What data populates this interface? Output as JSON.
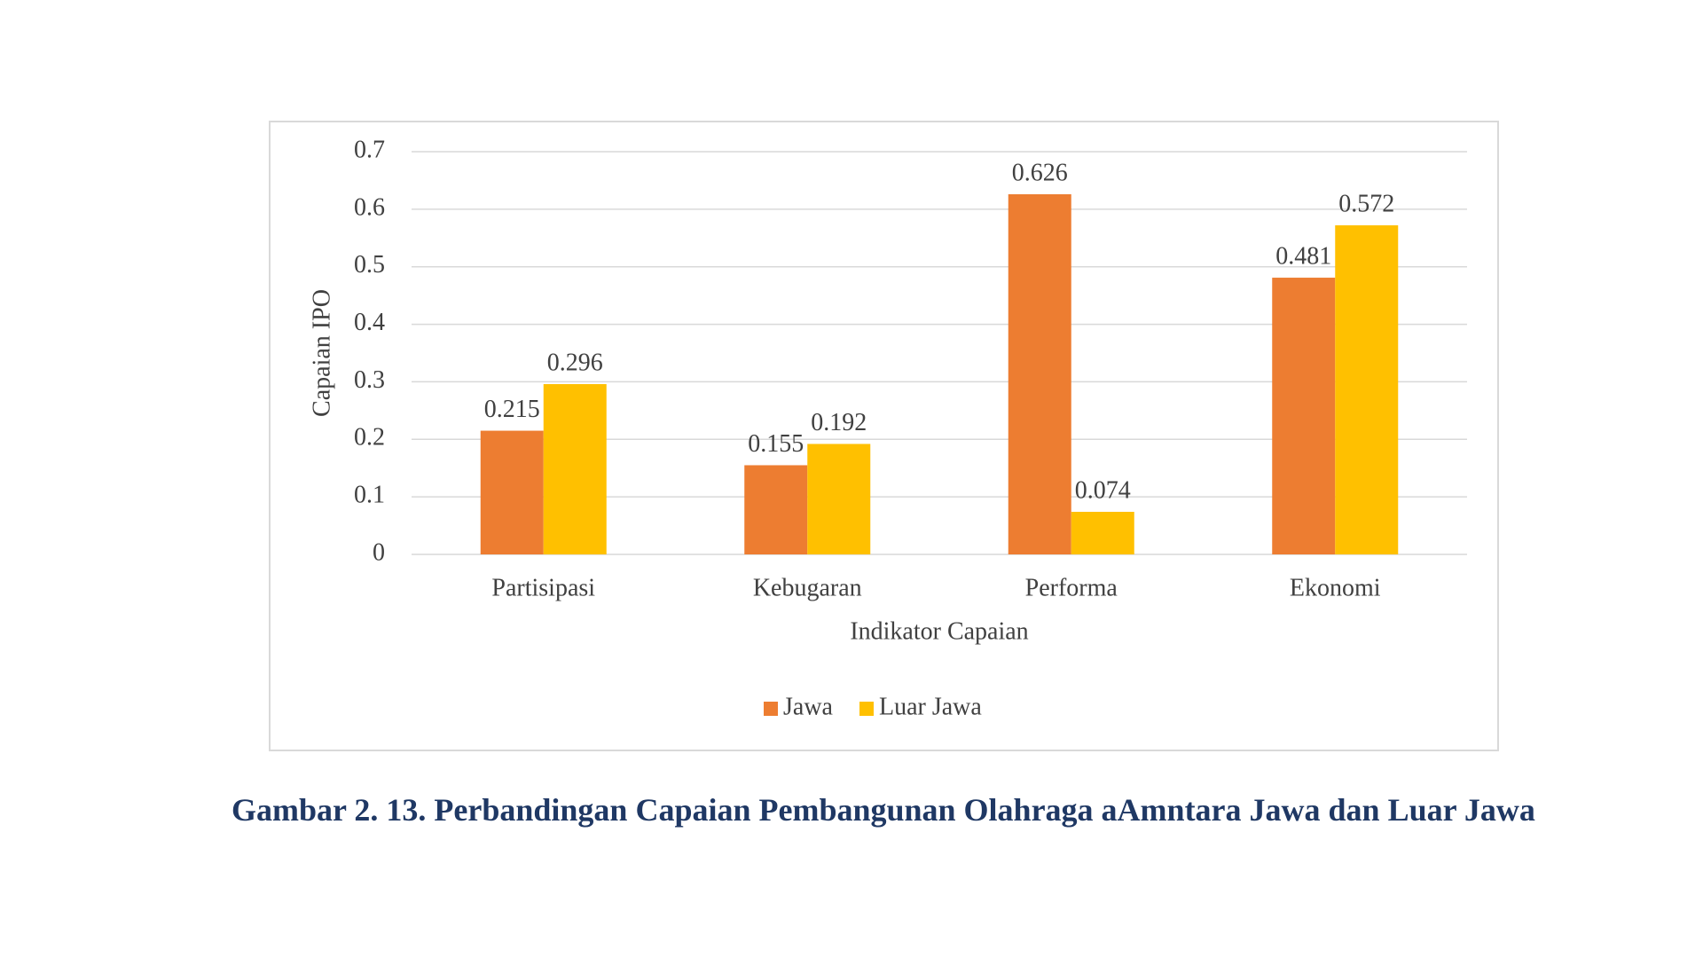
{
  "chart_data": {
    "type": "bar",
    "categories": [
      "Partisipasi",
      "Kebugaran",
      "Performa",
      "Ekonomi"
    ],
    "series": [
      {
        "name": "Jawa",
        "color": "#ed7d31",
        "values": [
          0.215,
          0.155,
          0.626,
          0.481
        ]
      },
      {
        "name": "Luar Jawa",
        "color": "#ffc000",
        "values": [
          0.296,
          0.192,
          0.074,
          0.572
        ]
      }
    ],
    "ylim": [
      0,
      0.7
    ],
    "yticks": [
      0,
      0.1,
      0.2,
      0.3,
      0.4,
      0.5,
      0.6,
      0.7
    ],
    "y_label": "Capaian IPO",
    "x_label": "Indikator Capaian",
    "grid": true,
    "legend": "bottom",
    "caption": "Gambar 2. 13. Perbandingan Capaian Pembangunan Olahraga aAmntara Jawa dan Luar Jawa"
  }
}
